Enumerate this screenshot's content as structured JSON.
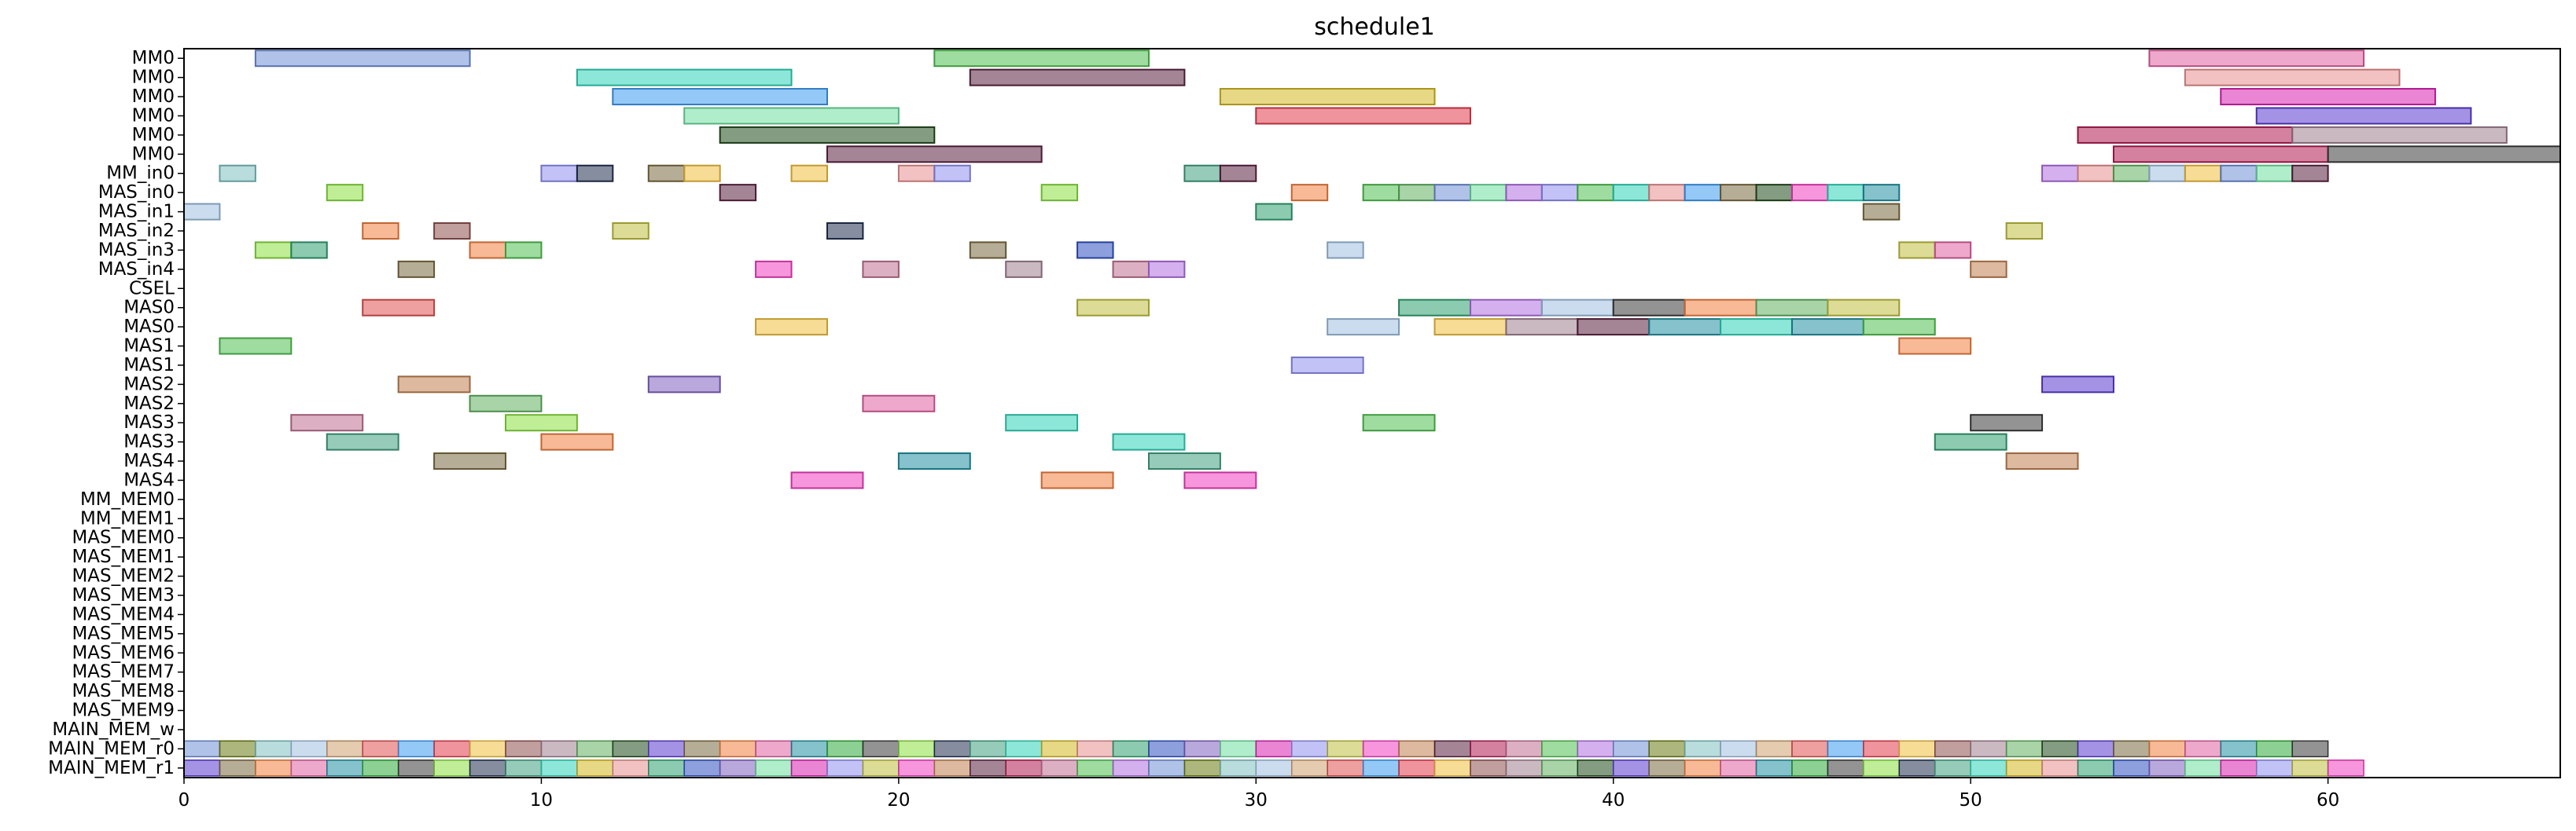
{
  "chart_data": {
    "type": "gantt",
    "title": "schedule1",
    "xlabel": "",
    "ylabel": "",
    "xlim": [
      0,
      66.5
    ],
    "x_ticks": [
      0,
      10,
      20,
      30,
      40,
      50,
      60
    ],
    "grid": false,
    "legend": "none",
    "rows": [
      "MM0",
      "MM0",
      "MM0",
      "MM0",
      "MM0",
      "MM0",
      "MM_in0",
      "MAS_in0",
      "MAS_in1",
      "MAS_in2",
      "MAS_in3",
      "MAS_in4",
      "CSEL",
      "MAS0",
      "MAS0",
      "MAS1",
      "MAS1",
      "MAS2",
      "MAS2",
      "MAS3",
      "MAS3",
      "MAS4",
      "MAS4",
      "MM_MEM0",
      "MM_MEM1",
      "MAS_MEM0",
      "MAS_MEM1",
      "MAS_MEM2",
      "MAS_MEM3",
      "MAS_MEM4",
      "MAS_MEM5",
      "MAS_MEM6",
      "MAS_MEM7",
      "MAS_MEM8",
      "MAS_MEM9",
      "MAIN_MEM_w",
      "MAIN_MEM_r0",
      "MAIN_MEM_r1"
    ],
    "palette": [
      "#6f8fd6",
      "#2fd4b8",
      "#3d9bf0",
      "#6fe0a0",
      "#1f4a1a",
      "#5a2040",
      "#2faa3a",
      "#6a7a10",
      "#d4b820",
      "#e23a4a",
      "#d820b0",
      "#5a3ad0",
      "#b01a50",
      "#3a3a3a",
      "#80c0c0",
      "#e89090",
      "#f0c040",
      "#9090f0",
      "#7a6a40",
      "#c07090",
      "#8ae040",
      "#a0c0e0",
      "#30a070",
      "#905050",
      "#c0c040",
      "#f08040",
      "#50c050",
      "#203050",
      "#d0a070",
      "#3050c0",
      "#a08090",
      "#f040c0",
      "#e060a0",
      "#b070e0",
      "#40a080",
      "#e05050",
      "#8060c0",
      "#60b060",
      "#c08050",
      "#2090a0"
    ],
    "tasks": [
      {
        "row": 0,
        "start": 2,
        "end": 8,
        "c": 0
      },
      {
        "row": 0,
        "start": 21,
        "end": 27,
        "c": 26
      },
      {
        "row": 0,
        "start": 55,
        "end": 61,
        "c": 32
      },
      {
        "row": 1,
        "start": 11,
        "end": 17,
        "c": 1
      },
      {
        "row": 1,
        "start": 22,
        "end": 28,
        "c": 5
      },
      {
        "row": 1,
        "start": 56,
        "end": 62,
        "c": 15
      },
      {
        "row": 2,
        "start": 12,
        "end": 18,
        "c": 2
      },
      {
        "row": 2,
        "start": 29,
        "end": 35,
        "c": 8
      },
      {
        "row": 2,
        "start": 57,
        "end": 63,
        "c": 10
      },
      {
        "row": 3,
        "start": 14,
        "end": 20,
        "c": 3
      },
      {
        "row": 3,
        "start": 30,
        "end": 36,
        "c": 9
      },
      {
        "row": 3,
        "start": 58,
        "end": 64,
        "c": 11
      },
      {
        "row": 4,
        "start": 15,
        "end": 21,
        "c": 4
      },
      {
        "row": 4,
        "start": 53,
        "end": 59,
        "c": 12
      },
      {
        "row": 4,
        "start": 59,
        "end": 65,
        "c": 30
      },
      {
        "row": 5,
        "start": 18,
        "end": 24,
        "c": 5
      },
      {
        "row": 5,
        "start": 54,
        "end": 60,
        "c": 12
      },
      {
        "row": 5,
        "start": 60,
        "end": 66.5,
        "c": 13
      },
      {
        "row": 6,
        "start": 1,
        "end": 2,
        "c": 14
      },
      {
        "row": 6,
        "start": 10,
        "end": 11,
        "c": 17
      },
      {
        "row": 6,
        "start": 11,
        "end": 12,
        "c": 27
      },
      {
        "row": 6,
        "start": 13,
        "end": 14,
        "c": 18
      },
      {
        "row": 6,
        "start": 14,
        "end": 15,
        "c": 16
      },
      {
        "row": 6,
        "start": 17,
        "end": 18,
        "c": 16
      },
      {
        "row": 6,
        "start": 20,
        "end": 21,
        "c": 15
      },
      {
        "row": 6,
        "start": 21,
        "end": 22,
        "c": 17
      },
      {
        "row": 6,
        "start": 28,
        "end": 29,
        "c": 34
      },
      {
        "row": 6,
        "start": 29,
        "end": 30,
        "c": 5
      },
      {
        "row": 6,
        "start": 52,
        "end": 53,
        "c": 33
      },
      {
        "row": 6,
        "start": 53,
        "end": 54,
        "c": 15
      },
      {
        "row": 6,
        "start": 54,
        "end": 55,
        "c": 37
      },
      {
        "row": 6,
        "start": 55,
        "end": 56,
        "c": 21
      },
      {
        "row": 6,
        "start": 56,
        "end": 57,
        "c": 16
      },
      {
        "row": 6,
        "start": 57,
        "end": 58,
        "c": 0
      },
      {
        "row": 6,
        "start": 58,
        "end": 59,
        "c": 3
      },
      {
        "row": 6,
        "start": 59,
        "end": 60,
        "c": 5
      },
      {
        "row": 7,
        "start": 4,
        "end": 5,
        "c": 20
      },
      {
        "row": 7,
        "start": 15,
        "end": 16,
        "c": 5
      },
      {
        "row": 7,
        "start": 24,
        "end": 25,
        "c": 20
      },
      {
        "row": 7,
        "start": 31,
        "end": 32,
        "c": 25
      },
      {
        "row": 7,
        "start": 33,
        "end": 34,
        "c": 26
      },
      {
        "row": 7,
        "start": 34,
        "end": 35,
        "c": 37
      },
      {
        "row": 7,
        "start": 35,
        "end": 36,
        "c": 0
      },
      {
        "row": 7,
        "start": 36,
        "end": 37,
        "c": 3
      },
      {
        "row": 7,
        "start": 37,
        "end": 38,
        "c": 33
      },
      {
        "row": 7,
        "start": 38,
        "end": 39,
        "c": 17
      },
      {
        "row": 7,
        "start": 39,
        "end": 40,
        "c": 26
      },
      {
        "row": 7,
        "start": 40,
        "end": 41,
        "c": 1
      },
      {
        "row": 7,
        "start": 41,
        "end": 42,
        "c": 15
      },
      {
        "row": 7,
        "start": 42,
        "end": 43,
        "c": 2
      },
      {
        "row": 7,
        "start": 43,
        "end": 44,
        "c": 18
      },
      {
        "row": 7,
        "start": 44,
        "end": 45,
        "c": 4
      },
      {
        "row": 7,
        "start": 45,
        "end": 46,
        "c": 31
      },
      {
        "row": 7,
        "start": 46,
        "end": 47,
        "c": 1
      },
      {
        "row": 7,
        "start": 47,
        "end": 48,
        "c": 39
      },
      {
        "row": 8,
        "start": 0,
        "end": 1,
        "c": 21
      },
      {
        "row": 8,
        "start": 30,
        "end": 31,
        "c": 22
      },
      {
        "row": 8,
        "start": 47,
        "end": 48,
        "c": 18
      },
      {
        "row": 9,
        "start": 5,
        "end": 6,
        "c": 25
      },
      {
        "row": 9,
        "start": 7,
        "end": 8,
        "c": 23
      },
      {
        "row": 9,
        "start": 12,
        "end": 13,
        "c": 24
      },
      {
        "row": 9,
        "start": 18,
        "end": 19,
        "c": 27
      },
      {
        "row": 9,
        "start": 51,
        "end": 52,
        "c": 24
      },
      {
        "row": 10,
        "start": 2,
        "end": 3,
        "c": 20
      },
      {
        "row": 10,
        "start": 3,
        "end": 4,
        "c": 22
      },
      {
        "row": 10,
        "start": 8,
        "end": 9,
        "c": 25
      },
      {
        "row": 10,
        "start": 9,
        "end": 10,
        "c": 26
      },
      {
        "row": 10,
        "start": 22,
        "end": 23,
        "c": 18
      },
      {
        "row": 10,
        "start": 25,
        "end": 26,
        "c": 29
      },
      {
        "row": 10,
        "start": 32,
        "end": 33,
        "c": 21
      },
      {
        "row": 10,
        "start": 48,
        "end": 49,
        "c": 24
      },
      {
        "row": 10,
        "start": 49,
        "end": 50,
        "c": 32
      },
      {
        "row": 11,
        "start": 6,
        "end": 7,
        "c": 18
      },
      {
        "row": 11,
        "start": 16,
        "end": 17,
        "c": 31
      },
      {
        "row": 11,
        "start": 19,
        "end": 20,
        "c": 19
      },
      {
        "row": 11,
        "start": 23,
        "end": 24,
        "c": 30
      },
      {
        "row": 11,
        "start": 26,
        "end": 27,
        "c": 19
      },
      {
        "row": 11,
        "start": 27,
        "end": 28,
        "c": 33
      },
      {
        "row": 11,
        "start": 50,
        "end": 51,
        "c": 38
      },
      {
        "row": 13,
        "start": 5,
        "end": 7,
        "c": 35
      },
      {
        "row": 13,
        "start": 25,
        "end": 27,
        "c": 24
      },
      {
        "row": 13,
        "start": 34,
        "end": 36,
        "c": 22
      },
      {
        "row": 13,
        "start": 36,
        "end": 38,
        "c": 33
      },
      {
        "row": 13,
        "start": 38,
        "end": 40,
        "c": 21
      },
      {
        "row": 13,
        "start": 40,
        "end": 42,
        "c": 13
      },
      {
        "row": 13,
        "start": 42,
        "end": 44,
        "c": 25
      },
      {
        "row": 13,
        "start": 44,
        "end": 46,
        "c": 37
      },
      {
        "row": 13,
        "start": 46,
        "end": 48,
        "c": 24
      },
      {
        "row": 14,
        "start": 16,
        "end": 18,
        "c": 16
      },
      {
        "row": 14,
        "start": 32,
        "end": 34,
        "c": 21
      },
      {
        "row": 14,
        "start": 35,
        "end": 37,
        "c": 16
      },
      {
        "row": 14,
        "start": 37,
        "end": 39,
        "c": 30
      },
      {
        "row": 14,
        "start": 39,
        "end": 41,
        "c": 5
      },
      {
        "row": 14,
        "start": 41,
        "end": 43,
        "c": 39
      },
      {
        "row": 14,
        "start": 43,
        "end": 45,
        "c": 1
      },
      {
        "row": 14,
        "start": 45,
        "end": 47,
        "c": 39
      },
      {
        "row": 14,
        "start": 47,
        "end": 49,
        "c": 26
      },
      {
        "row": 15,
        "start": 1,
        "end": 3,
        "c": 26
      },
      {
        "row": 15,
        "start": 48,
        "end": 50,
        "c": 25
      },
      {
        "row": 16,
        "start": 31,
        "end": 33,
        "c": 17
      },
      {
        "row": 17,
        "start": 6,
        "end": 8,
        "c": 38
      },
      {
        "row": 17,
        "start": 13,
        "end": 15,
        "c": 36
      },
      {
        "row": 17,
        "start": 52,
        "end": 54,
        "c": 11
      },
      {
        "row": 18,
        "start": 8,
        "end": 10,
        "c": 37
      },
      {
        "row": 18,
        "start": 19,
        "end": 21,
        "c": 32
      },
      {
        "row": 19,
        "start": 3,
        "end": 5,
        "c": 19
      },
      {
        "row": 19,
        "start": 9,
        "end": 11,
        "c": 20
      },
      {
        "row": 19,
        "start": 23,
        "end": 25,
        "c": 1
      },
      {
        "row": 19,
        "start": 33,
        "end": 35,
        "c": 26
      },
      {
        "row": 19,
        "start": 50,
        "end": 52,
        "c": 13
      },
      {
        "row": 20,
        "start": 4,
        "end": 6,
        "c": 34
      },
      {
        "row": 20,
        "start": 10,
        "end": 12,
        "c": 25
      },
      {
        "row": 20,
        "start": 26,
        "end": 28,
        "c": 1
      },
      {
        "row": 20,
        "start": 49,
        "end": 51,
        "c": 22
      },
      {
        "row": 21,
        "start": 7,
        "end": 9,
        "c": 18
      },
      {
        "row": 21,
        "start": 20,
        "end": 22,
        "c": 39
      },
      {
        "row": 21,
        "start": 27,
        "end": 29,
        "c": 34
      },
      {
        "row": 21,
        "start": 51,
        "end": 53,
        "c": 38
      },
      {
        "row": 22,
        "start": 17,
        "end": 19,
        "c": 31
      },
      {
        "row": 22,
        "start": 24,
        "end": 26,
        "c": 25
      },
      {
        "row": 22,
        "start": 28,
        "end": 30,
        "c": 31
      }
    ],
    "mem_rows": [
      {
        "row": 36,
        "start": 0,
        "end": 60,
        "step": 1
      },
      {
        "row": 37,
        "start": 0,
        "end": 61,
        "step": 1
      }
    ]
  }
}
